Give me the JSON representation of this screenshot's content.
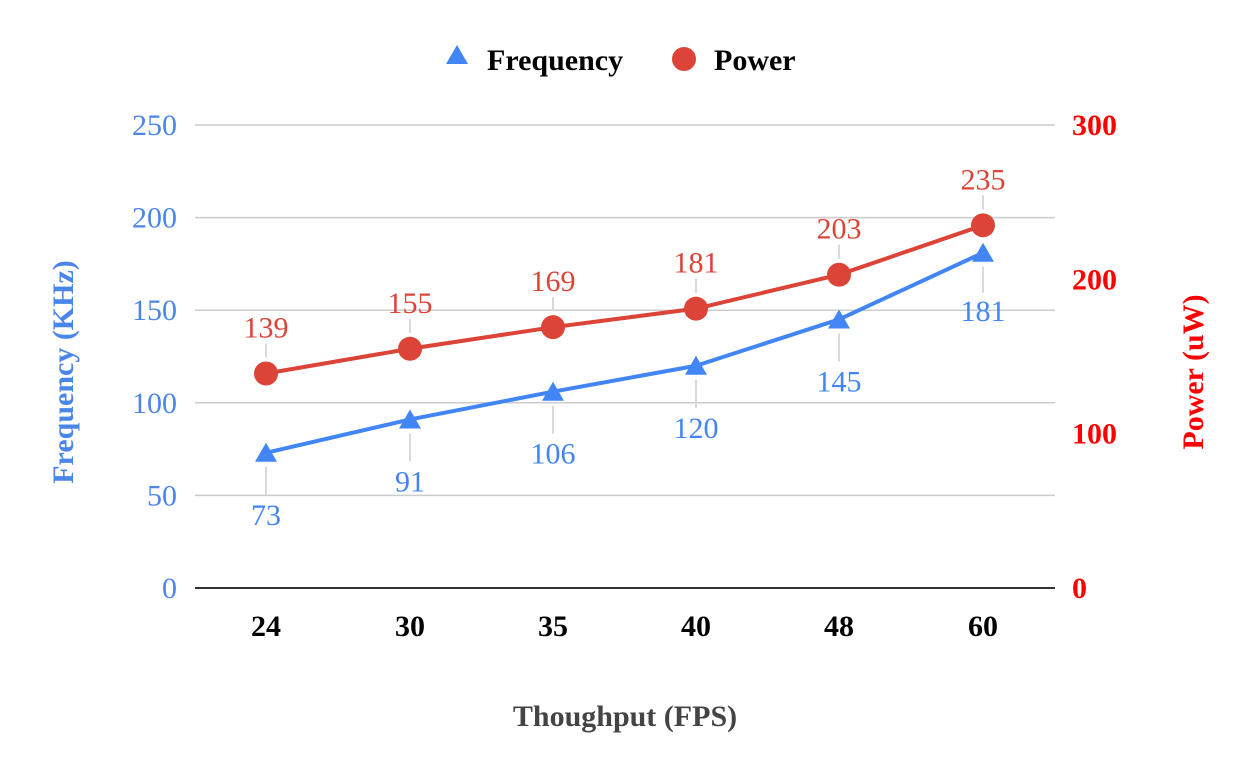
{
  "chart_data": {
    "type": "line",
    "title": "",
    "xlabel": "Thoughput (FPS)",
    "ylabel_left": "Frequency (KHz)",
    "ylabel_right": "Power (uW)",
    "categories": [
      "24",
      "30",
      "35",
      "40",
      "48",
      "60"
    ],
    "y_left": {
      "lim": [
        0,
        250
      ],
      "ticks": [
        "0",
        "50",
        "100",
        "150",
        "200",
        "250"
      ]
    },
    "y_right": {
      "lim": [
        0,
        300
      ],
      "ticks": [
        "0",
        "100",
        "200",
        "300"
      ]
    },
    "grid": true,
    "legend_position": "top-center",
    "series": [
      {
        "name": "Frequency",
        "axis": "left",
        "marker": "triangle",
        "color": "#4285f4",
        "values": [
          73,
          91,
          106,
          120,
          145,
          181
        ],
        "labels": [
          "73",
          "91",
          "106",
          "120",
          "145",
          "181"
        ]
      },
      {
        "name": "Power",
        "axis": "right",
        "marker": "circle",
        "color": "#db4437",
        "values": [
          139,
          155,
          169,
          181,
          203,
          235
        ],
        "labels": [
          "139",
          "155",
          "169",
          "181",
          "203",
          "235"
        ]
      }
    ],
    "colors": {
      "left_axis": "#4a86e8",
      "right_axis": "#ff0000",
      "grid": "#cccccc",
      "baseline": "#333333",
      "xlabel": "#444444"
    }
  }
}
